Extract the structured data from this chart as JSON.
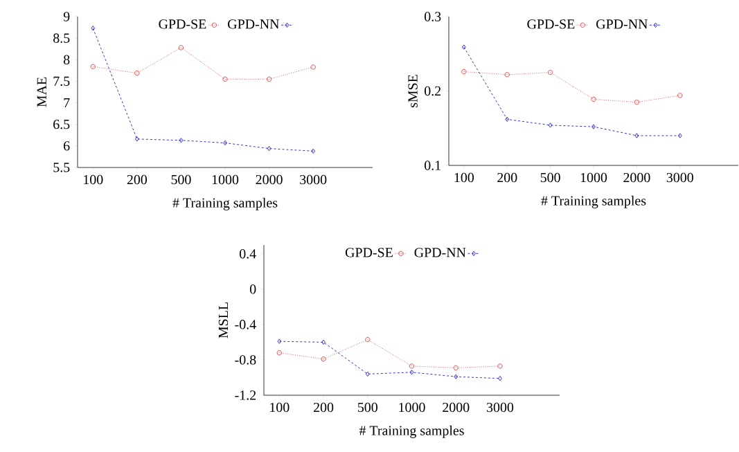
{
  "chart_data": [
    {
      "type": "line",
      "xlabel": "# Training samples",
      "ylabel": "MAE",
      "categories": [
        "100",
        "200",
        "500",
        "1000",
        "2000",
        "3000"
      ],
      "ylim": [
        5.5,
        9
      ],
      "yticks": [
        5.5,
        6,
        6.5,
        7,
        7.5,
        8,
        8.5,
        9
      ],
      "legend": "top",
      "series": [
        {
          "name": "GPD-SE",
          "color": "#ee3333",
          "marker": "circle",
          "line_style": "dotted",
          "values": [
            7.84,
            7.69,
            8.28,
            7.55,
            7.55,
            7.83
          ]
        },
        {
          "name": "GPD-NN",
          "color": "#1a1acc",
          "marker": "diamond",
          "line_style": "dashed",
          "values": [
            8.73,
            6.16,
            6.13,
            6.07,
            5.94,
            5.88
          ]
        }
      ]
    },
    {
      "type": "line",
      "xlabel": "# Training samples",
      "ylabel": "sMSE",
      "categories": [
        "100",
        "200",
        "500",
        "1000",
        "2000",
        "3000"
      ],
      "ylim": [
        0.1,
        0.3
      ],
      "yticks": [
        0.1,
        0.2,
        0.3
      ],
      "legend": "top",
      "series": [
        {
          "name": "GPD-SE",
          "color": "#ee3333",
          "marker": "circle",
          "line_style": "dotted",
          "values": [
            0.226,
            0.222,
            0.225,
            0.189,
            0.185,
            0.194
          ]
        },
        {
          "name": "GPD-NN",
          "color": "#1a1acc",
          "marker": "diamond",
          "line_style": "dashed",
          "values": [
            0.259,
            0.162,
            0.154,
            0.152,
            0.14,
            0.14
          ]
        }
      ]
    },
    {
      "type": "line",
      "xlabel": "# Training samples",
      "ylabel": "MSLL",
      "categories": [
        "100",
        "200",
        "500",
        "1000",
        "2000",
        "3000"
      ],
      "ylim": [
        -1.2,
        0.5
      ],
      "yticks": [
        -1.2,
        -0.8,
        -0.4,
        0,
        0.4
      ],
      "legend": "top",
      "series": [
        {
          "name": "GPD-SE",
          "color": "#ee3333",
          "marker": "circle",
          "line_style": "dotted",
          "values": [
            -0.72,
            -0.79,
            -0.57,
            -0.87,
            -0.89,
            -0.87
          ]
        },
        {
          "name": "GPD-NN",
          "color": "#1a1acc",
          "marker": "diamond",
          "line_style": "dashed",
          "values": [
            -0.59,
            -0.6,
            -0.96,
            -0.94,
            -0.99,
            -1.01
          ]
        }
      ]
    }
  ]
}
